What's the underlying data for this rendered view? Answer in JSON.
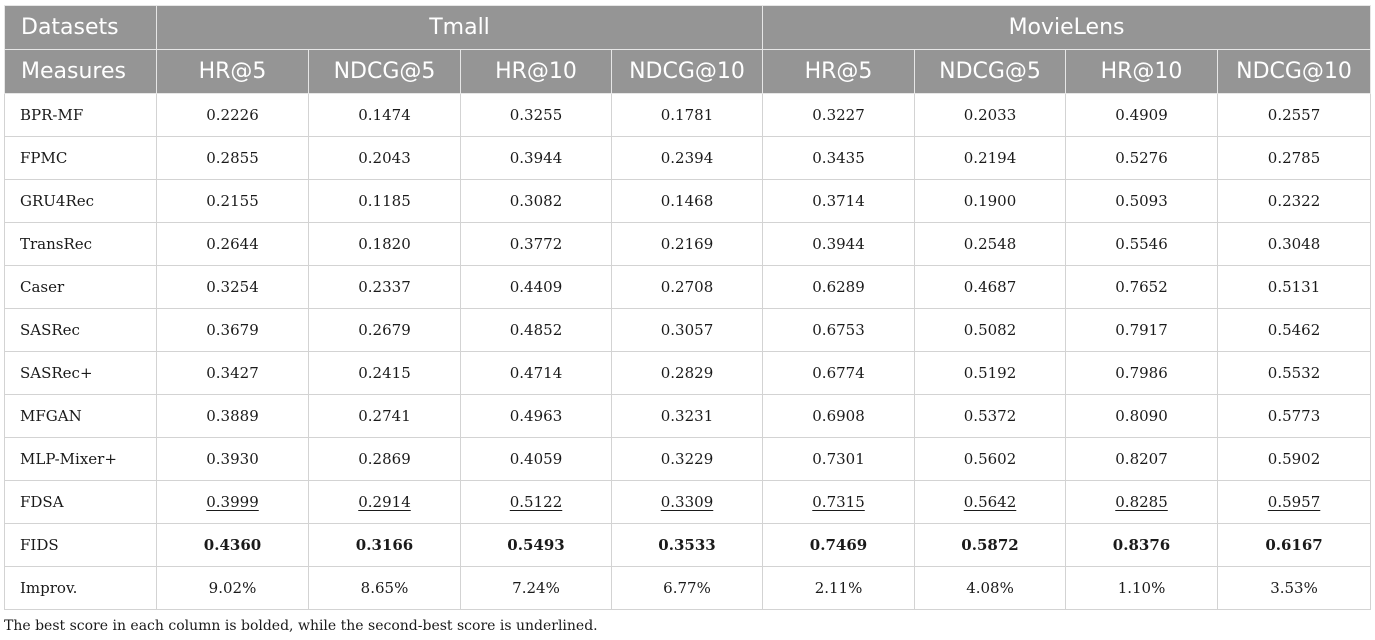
{
  "header": {
    "row1": {
      "corner": "Datasets",
      "groups": [
        "Tmall",
        "MovieLens"
      ]
    },
    "row2": {
      "corner": "Measures",
      "measures": [
        "HR@5",
        "NDCG@5",
        "HR@10",
        "NDCG@10",
        "HR@5",
        "NDCG@5",
        "HR@10",
        "NDCG@10"
      ]
    }
  },
  "rows": [
    {
      "model": "BPR-MF",
      "cells": [
        {
          "v": "0.2226",
          "s": ""
        },
        {
          "v": "0.1474",
          "s": ""
        },
        {
          "v": "0.3255",
          "s": ""
        },
        {
          "v": "0.1781",
          "s": ""
        },
        {
          "v": "0.3227",
          "s": ""
        },
        {
          "v": "0.2033",
          "s": ""
        },
        {
          "v": "0.4909",
          "s": ""
        },
        {
          "v": "0.2557",
          "s": ""
        }
      ]
    },
    {
      "model": "FPMC",
      "cells": [
        {
          "v": "0.2855",
          "s": ""
        },
        {
          "v": "0.2043",
          "s": ""
        },
        {
          "v": "0.3944",
          "s": ""
        },
        {
          "v": "0.2394",
          "s": ""
        },
        {
          "v": "0.3435",
          "s": ""
        },
        {
          "v": "0.2194",
          "s": ""
        },
        {
          "v": "0.5276",
          "s": ""
        },
        {
          "v": "0.2785",
          "s": ""
        }
      ]
    },
    {
      "model": "GRU4Rec",
      "cells": [
        {
          "v": "0.2155",
          "s": ""
        },
        {
          "v": "0.1185",
          "s": ""
        },
        {
          "v": "0.3082",
          "s": ""
        },
        {
          "v": "0.1468",
          "s": ""
        },
        {
          "v": "0.3714",
          "s": ""
        },
        {
          "v": "0.1900",
          "s": ""
        },
        {
          "v": "0.5093",
          "s": ""
        },
        {
          "v": "0.2322",
          "s": ""
        }
      ]
    },
    {
      "model": "TransRec",
      "cells": [
        {
          "v": "0.2644",
          "s": ""
        },
        {
          "v": "0.1820",
          "s": ""
        },
        {
          "v": "0.3772",
          "s": ""
        },
        {
          "v": "0.2169",
          "s": ""
        },
        {
          "v": "0.3944",
          "s": ""
        },
        {
          "v": "0.2548",
          "s": ""
        },
        {
          "v": "0.5546",
          "s": ""
        },
        {
          "v": "0.3048",
          "s": ""
        }
      ]
    },
    {
      "model": "Caser",
      "cells": [
        {
          "v": "0.3254",
          "s": ""
        },
        {
          "v": "0.2337",
          "s": ""
        },
        {
          "v": "0.4409",
          "s": ""
        },
        {
          "v": "0.2708",
          "s": ""
        },
        {
          "v": "0.6289",
          "s": ""
        },
        {
          "v": "0.4687",
          "s": ""
        },
        {
          "v": "0.7652",
          "s": ""
        },
        {
          "v": "0.5131",
          "s": ""
        }
      ]
    },
    {
      "model": "SASRec",
      "cells": [
        {
          "v": "0.3679",
          "s": ""
        },
        {
          "v": "0.2679",
          "s": ""
        },
        {
          "v": "0.4852",
          "s": ""
        },
        {
          "v": "0.3057",
          "s": ""
        },
        {
          "v": "0.6753",
          "s": ""
        },
        {
          "v": "0.5082",
          "s": ""
        },
        {
          "v": "0.7917",
          "s": ""
        },
        {
          "v": "0.5462",
          "s": ""
        }
      ]
    },
    {
      "model": "SASRec+",
      "cells": [
        {
          "v": "0.3427",
          "s": ""
        },
        {
          "v": "0.2415",
          "s": ""
        },
        {
          "v": "0.4714",
          "s": ""
        },
        {
          "v": "0.2829",
          "s": ""
        },
        {
          "v": "0.6774",
          "s": ""
        },
        {
          "v": "0.5192",
          "s": ""
        },
        {
          "v": "0.7986",
          "s": ""
        },
        {
          "v": "0.5532",
          "s": ""
        }
      ]
    },
    {
      "model": "MFGAN",
      "cells": [
        {
          "v": "0.3889",
          "s": ""
        },
        {
          "v": "0.2741",
          "s": ""
        },
        {
          "v": "0.4963",
          "s": ""
        },
        {
          "v": "0.3231",
          "s": ""
        },
        {
          "v": "0.6908",
          "s": ""
        },
        {
          "v": "0.5372",
          "s": ""
        },
        {
          "v": "0.8090",
          "s": ""
        },
        {
          "v": "0.5773",
          "s": ""
        }
      ]
    },
    {
      "model": "MLP-Mixer+",
      "cells": [
        {
          "v": "0.3930",
          "s": ""
        },
        {
          "v": "0.2869",
          "s": ""
        },
        {
          "v": "0.4059",
          "s": ""
        },
        {
          "v": "0.3229",
          "s": ""
        },
        {
          "v": "0.7301",
          "s": ""
        },
        {
          "v": "0.5602",
          "s": ""
        },
        {
          "v": "0.8207",
          "s": ""
        },
        {
          "v": "0.5902",
          "s": ""
        }
      ]
    },
    {
      "model": "FDSA",
      "cells": [
        {
          "v": "0.3999",
          "s": "u"
        },
        {
          "v": "0.2914",
          "s": "u"
        },
        {
          "v": "0.5122",
          "s": "u"
        },
        {
          "v": "0.3309",
          "s": "u"
        },
        {
          "v": "0.7315",
          "s": "u"
        },
        {
          "v": "0.5642",
          "s": "u"
        },
        {
          "v": "0.8285",
          "s": "u"
        },
        {
          "v": "0.5957",
          "s": "u"
        }
      ]
    },
    {
      "model": "FIDS",
      "cells": [
        {
          "v": "0.4360",
          "s": "b"
        },
        {
          "v": "0.3166",
          "s": "b"
        },
        {
          "v": "0.5493",
          "s": "b"
        },
        {
          "v": "0.3533",
          "s": "b"
        },
        {
          "v": "0.7469",
          "s": "b"
        },
        {
          "v": "0.5872",
          "s": "b"
        },
        {
          "v": "0.8376",
          "s": "b"
        },
        {
          "v": "0.6167",
          "s": "b"
        }
      ]
    },
    {
      "model": "Improv.",
      "cells": [
        {
          "v": "9.02%",
          "s": ""
        },
        {
          "v": "8.65%",
          "s": ""
        },
        {
          "v": "7.24%",
          "s": ""
        },
        {
          "v": "6.77%",
          "s": ""
        },
        {
          "v": "2.11%",
          "s": ""
        },
        {
          "v": "4.08%",
          "s": ""
        },
        {
          "v": "1.10%",
          "s": ""
        },
        {
          "v": "3.53%",
          "s": ""
        }
      ]
    }
  ],
  "footnote": "The best score in each column is bolded, while the second-best score is underlined.",
  "colors": {
    "header_bg": "#959595",
    "header_text": "#ffffff",
    "border": "#d3d3d3"
  }
}
